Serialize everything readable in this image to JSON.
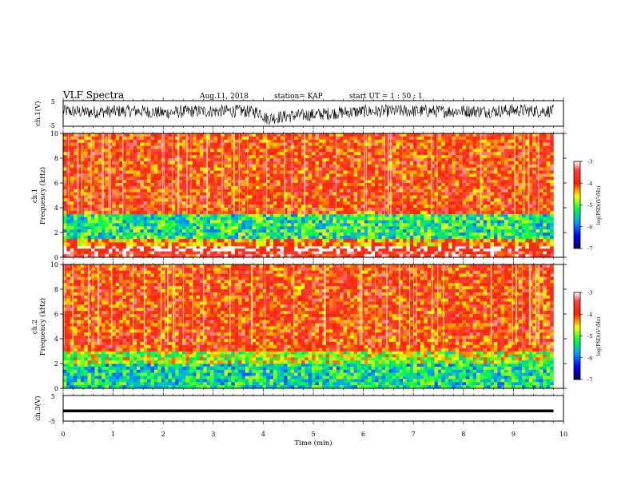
{
  "header": {
    "title": "VLF Spectra",
    "date": "Aug.11, 2018",
    "station": "station= KAP",
    "start": "start  UT =   1 : 50 : 1"
  },
  "chart_data": [
    {
      "type": "line",
      "name": "ch1-waveform",
      "ylabel": "ch.1(V)",
      "ylim": [
        -5,
        5
      ],
      "yticks": [
        "5",
        "-5"
      ],
      "x": [
        0,
        0.5,
        1,
        1.5,
        2,
        2.5,
        3,
        3.5,
        3.95,
        4.05,
        4.5,
        5,
        5.5,
        6,
        6.5,
        7,
        7.5,
        8,
        8.5,
        9,
        9.5,
        9.8
      ],
      "values": [
        1,
        0.5,
        0.8,
        1,
        0.2,
        0.8,
        0.9,
        1,
        0.5,
        -2,
        -1,
        -0.5,
        0.3,
        0.8,
        0.9,
        1,
        0.8,
        1,
        0.8,
        1.2,
        1,
        1
      ],
      "note_range": "approx ±2.5 V envelope"
    },
    {
      "type": "heatmap",
      "name": "ch1-spectrogram",
      "ylabel_top": "ch.1",
      "ylabel": "Frequency (kHz)",
      "ylim": [
        0,
        10
      ],
      "yticks": [
        "0",
        "2",
        "4",
        "6",
        "8",
        "10"
      ],
      "description_rows_kHz": [
        {
          "band": [
            0,
            0.5
          ],
          "level": -3.6
        },
        {
          "band": [
            0.5,
            0.9
          ],
          "level": "gap"
        },
        {
          "band": [
            0.9,
            1.5
          ],
          "level": -4.2
        },
        {
          "band": [
            1.5,
            3.5
          ],
          "level": -5.3
        },
        {
          "band": [
            3.5,
            10
          ],
          "level": -3.9
        }
      ],
      "colorbar": {
        "label": "log(PSD)(V²/Hz)",
        "range": [
          -7,
          -3
        ],
        "ticks": [
          "-3",
          "-4",
          "-5",
          "-6",
          "-7"
        ]
      }
    },
    {
      "type": "heatmap",
      "name": "ch2-spectrogram",
      "ylabel_top": "ch.2",
      "ylabel": "Frequency (kHz)",
      "ylim": [
        0,
        10
      ],
      "yticks": [
        "0",
        "2",
        "4",
        "6",
        "8",
        "10"
      ],
      "description_rows_kHz": [
        {
          "band": [
            0,
            2
          ],
          "level": -5.4
        },
        {
          "band": [
            2,
            3
          ],
          "level": -4.8
        },
        {
          "band": [
            3,
            10
          ],
          "level": -3.9
        }
      ],
      "colorbar": {
        "label": "log(PSD)(V²/Hz)",
        "range": [
          -7,
          -3
        ],
        "ticks": [
          "-3",
          "-4",
          "-5",
          "-6",
          "-7"
        ]
      }
    },
    {
      "type": "line",
      "name": "ch3-waveform",
      "ylabel": "ch.3(V)",
      "ylim": [
        -5,
        5
      ],
      "yticks": [
        "5",
        "-5"
      ],
      "x": [
        0,
        9.8
      ],
      "values": [
        -1,
        -1
      ]
    }
  ],
  "xaxis": {
    "label": "Time (min)",
    "range": [
      0,
      10
    ],
    "ticks": [
      "0",
      "1",
      "2",
      "3",
      "4",
      "5",
      "6",
      "7",
      "8",
      "9",
      "10"
    ]
  },
  "colors": {
    "low": "#000080",
    "mid_low": "#0000ff",
    "mid": "#00ff00",
    "mid_high": "#ffff00",
    "high": "#ff0000",
    "max": "#ffffff"
  }
}
